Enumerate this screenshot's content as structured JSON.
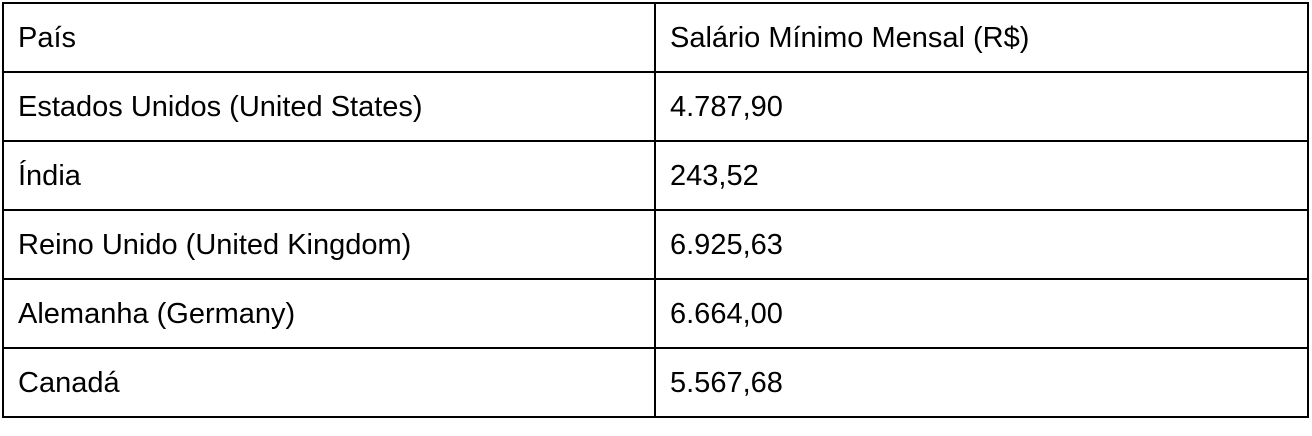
{
  "table": {
    "headers": [
      "País",
      "Salário Mínimo Mensal (R$)"
    ],
    "rows": [
      [
        "Estados Unidos (United States)",
        "4.787,90"
      ],
      [
        "Índia",
        "243,52"
      ],
      [
        "Reino Unido (United Kingdom)",
        "6.925,63"
      ],
      [
        "Alemanha (Germany)",
        "6.664,00"
      ],
      [
        "Canadá",
        "5.567,68"
      ]
    ]
  }
}
